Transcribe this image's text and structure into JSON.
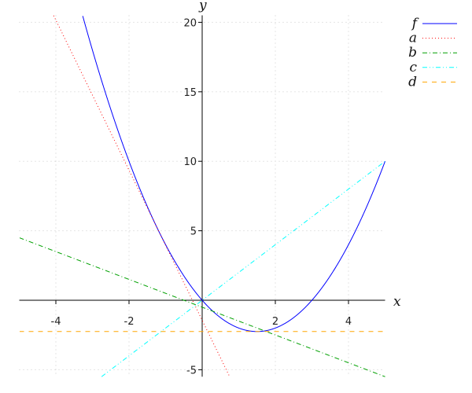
{
  "chart_data": {
    "type": "line",
    "xlabel": "x",
    "ylabel": "y",
    "xlim": [
      -5,
      5
    ],
    "ylim": [
      -5.5,
      20.5
    ],
    "xticks": [
      -4,
      -2,
      2,
      4
    ],
    "yticks": [
      -5,
      5,
      10,
      15,
      20
    ],
    "grid": true,
    "legend_position": "top-right",
    "series": [
      {
        "name": "f",
        "expression": "x^2 - 3x",
        "color": "#0000ff",
        "style": "solid"
      },
      {
        "name": "a",
        "expression": "-5.4x - 1.44",
        "color": "#ff0000",
        "style": "dotted"
      },
      {
        "name": "b",
        "expression": "-x - 0.5",
        "color": "#00a000",
        "style": "dashdot"
      },
      {
        "name": "c",
        "expression": "2x",
        "color": "#00ffff",
        "style": "dashdotdot"
      },
      {
        "name": "d",
        "expression": "-2.25",
        "color": "#ffa500",
        "style": "dashed"
      }
    ]
  }
}
